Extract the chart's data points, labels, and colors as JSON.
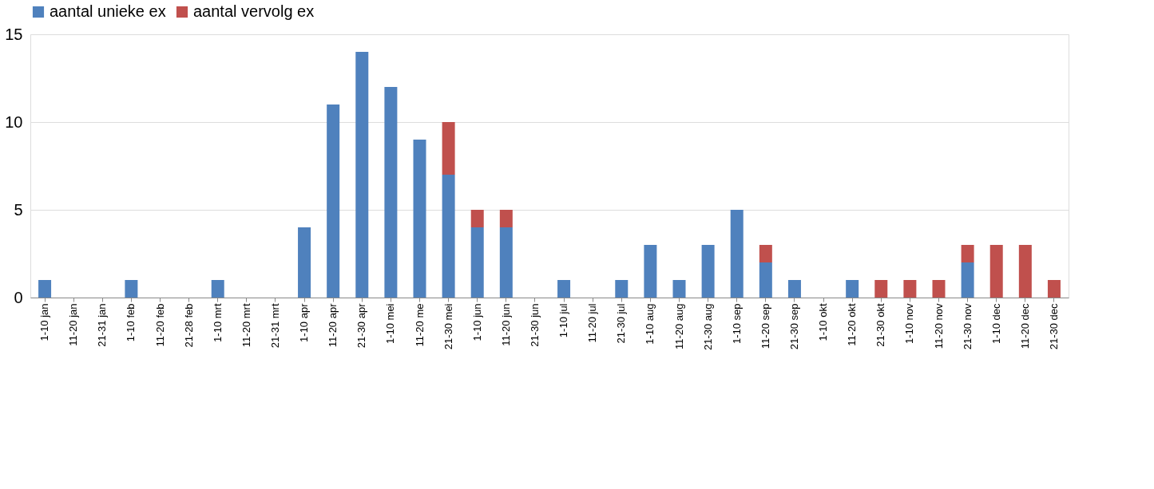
{
  "chart_data": {
    "type": "bar",
    "stacked": true,
    "categories": [
      "1-10 jan",
      "11-20 jan",
      "21-31 jan",
      "1-10 feb",
      "11-20 feb",
      "21-28 feb",
      "1-10 mrt",
      "11-20 mrt",
      "21-31 mrt",
      "1-10 apr",
      "11-20 apr",
      "21-30 apr",
      "1-10 mei",
      "11-20 me",
      "21-30 mei",
      "1-10 jun",
      "11-20 jun",
      "21-30 jun",
      "1-10 jul",
      "11-20 jul",
      "21-30 jul",
      "1-10 aug",
      "11-20 aug",
      "21-30 aug",
      "1-10 sep",
      "11-20 sep",
      "21-30 sep",
      "1-10 okt",
      "11-20 okt",
      "21-30 okt",
      "1-10 nov",
      "11-20 nov",
      "21-30 nov",
      "1-10 dec",
      "11-20 dec",
      "21-30 dec"
    ],
    "series": [
      {
        "name": "aantal unieke ex",
        "color": "#4f81bd",
        "values": [
          1,
          0,
          0,
          1,
          0,
          0,
          1,
          0,
          0,
          4,
          11,
          14,
          12,
          9,
          7,
          4,
          4,
          0,
          1,
          0,
          1,
          3,
          1,
          3,
          5,
          2,
          1,
          0,
          1,
          0,
          0,
          0,
          2,
          0,
          0,
          0
        ]
      },
      {
        "name": "aantal vervolg ex",
        "color": "#c0504d",
        "values": [
          0,
          0,
          0,
          0,
          0,
          0,
          0,
          0,
          0,
          0,
          0,
          0,
          0,
          0,
          3,
          1,
          1,
          0,
          0,
          0,
          0,
          0,
          0,
          0,
          0,
          1,
          0,
          0,
          0,
          1,
          1,
          1,
          1,
          3,
          3,
          1
        ]
      }
    ],
    "ylim": [
      0,
      15
    ],
    "yticks": [
      0,
      5,
      10,
      15
    ],
    "grid": "y",
    "legend": "top"
  }
}
